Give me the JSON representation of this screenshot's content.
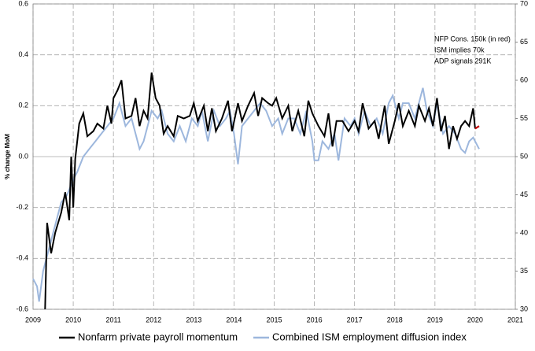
{
  "chart_data": {
    "type": "line",
    "y_label": "% change MoM",
    "annotations": [
      "NFP Cons. 150k (in red)",
      "ISM implies   70k",
      "ADP signals  291K"
    ],
    "xlim": [
      2009,
      2021
    ],
    "xticks": [
      2009,
      2010,
      2011,
      2012,
      2013,
      2014,
      2015,
      2016,
      2017,
      2018,
      2019,
      2020,
      2021
    ],
    "ylim": [
      -0.6,
      0.6
    ],
    "yticks": [
      -0.6,
      -0.4,
      -0.2,
      {
        "value": 0,
        "label": "0.0"
      },
      0.2,
      0.4,
      0.6
    ],
    "y2lim": [
      30,
      70
    ],
    "y2ticks": [
      30,
      35,
      40,
      45,
      50,
      55,
      60,
      65,
      70
    ],
    "grid": true,
    "series": [
      {
        "name": "Nonfarm private payroll momentum",
        "color": "#000000",
        "x": [
          2009.3,
          2009.35,
          2009.45,
          2009.55,
          2009.7,
          2009.8,
          2009.9,
          2009.95,
          2010.0,
          2010.05,
          2010.15,
          2010.25,
          2010.35,
          2010.5,
          2010.6,
          2010.75,
          2010.85,
          2010.95,
          2011.0,
          2011.1,
          2011.2,
          2011.3,
          2011.45,
          2011.55,
          2011.65,
          2011.75,
          2011.85,
          2011.95,
          2012.05,
          2012.15,
          2012.25,
          2012.35,
          2012.5,
          2012.6,
          2012.75,
          2012.9,
          2013.0,
          2013.1,
          2013.25,
          2013.35,
          2013.45,
          2013.55,
          2013.7,
          2013.85,
          2013.95,
          2014.1,
          2014.2,
          2014.35,
          2014.5,
          2014.6,
          2014.7,
          2014.85,
          2014.95,
          2015.05,
          2015.2,
          2015.35,
          2015.45,
          2015.6,
          2015.75,
          2015.85,
          2015.95,
          2016.1,
          2016.25,
          2016.35,
          2016.45,
          2016.55,
          2016.7,
          2016.85,
          2017.0,
          2017.1,
          2017.2,
          2017.35,
          2017.5,
          2017.6,
          2017.75,
          2017.85,
          2018.0,
          2018.1,
          2018.2,
          2018.35,
          2018.5,
          2018.6,
          2018.75,
          2018.85,
          2018.95,
          2019.05,
          2019.15,
          2019.25,
          2019.35,
          2019.45,
          2019.55,
          2019.65,
          2019.75,
          2019.85,
          2019.95,
          2020.0
        ],
        "values": [
          -0.6,
          -0.26,
          -0.38,
          -0.3,
          -0.22,
          -0.14,
          -0.25,
          0.0,
          -0.2,
          -0.01,
          0.13,
          0.17,
          0.08,
          0.1,
          0.13,
          0.11,
          0.2,
          0.13,
          0.23,
          0.26,
          0.3,
          0.15,
          0.16,
          0.23,
          0.12,
          0.18,
          0.15,
          0.33,
          0.23,
          0.2,
          0.09,
          0.12,
          0.08,
          0.16,
          0.15,
          0.16,
          0.21,
          0.14,
          0.2,
          0.1,
          0.19,
          0.1,
          0.15,
          0.22,
          0.1,
          0.21,
          0.14,
          0.2,
          0.25,
          0.16,
          0.23,
          0.21,
          0.2,
          0.23,
          0.15,
          0.2,
          0.1,
          0.18,
          0.08,
          0.22,
          0.17,
          0.12,
          0.08,
          0.17,
          0.04,
          0.14,
          0.14,
          0.1,
          0.14,
          0.1,
          0.21,
          0.11,
          0.14,
          0.07,
          0.2,
          0.05,
          0.14,
          0.21,
          0.12,
          0.18,
          0.12,
          0.2,
          0.14,
          0.19,
          0.12,
          0.23,
          0.1,
          0.16,
          0.03,
          0.12,
          0.07,
          0.12,
          0.14,
          0.12,
          0.19,
          0.11
        ]
      },
      {
        "name": "Combined ISM employment diffusion index",
        "color": "#9db7dd",
        "axis": "y2",
        "x": [
          2009.0,
          2009.1,
          2009.15,
          2009.25,
          2009.4,
          2009.55,
          2009.7,
          2009.85,
          2010.0,
          2010.1,
          2010.25,
          2010.4,
          2010.55,
          2010.7,
          2010.85,
          2011.0,
          2011.15,
          2011.3,
          2011.45,
          2011.55,
          2011.65,
          2011.75,
          2011.85,
          2011.95,
          2012.1,
          2012.2,
          2012.35,
          2012.5,
          2012.65,
          2012.8,
          2012.95,
          2013.1,
          2013.2,
          2013.35,
          2013.5,
          2013.65,
          2013.8,
          2013.9,
          2014.0,
          2014.1,
          2014.2,
          2014.35,
          2014.5,
          2014.65,
          2014.8,
          2014.95,
          2015.1,
          2015.2,
          2015.35,
          2015.5,
          2015.65,
          2015.8,
          2015.95,
          2016.0,
          2016.1,
          2016.2,
          2016.35,
          2016.5,
          2016.6,
          2016.75,
          2016.9,
          2017.0,
          2017.1,
          2017.25,
          2017.4,
          2017.55,
          2017.7,
          2017.85,
          2017.95,
          2018.1,
          2018.2,
          2018.35,
          2018.5,
          2018.6,
          2018.7,
          2018.8,
          2018.95,
          2019.05,
          2019.2,
          2019.35,
          2019.5,
          2019.65,
          2019.75,
          2019.85,
          2019.95,
          2020.1
        ],
        "values": [
          34,
          33,
          31,
          35,
          38,
          41,
          44,
          45,
          47,
          48,
          50,
          51,
          52,
          53,
          54,
          55,
          57,
          54,
          55,
          53,
          51,
          52,
          54,
          56,
          55,
          56,
          53,
          52,
          54,
          52,
          55,
          54,
          56,
          52,
          56,
          54,
          55,
          56,
          53,
          49,
          54,
          55,
          56,
          57,
          56,
          54,
          55,
          53,
          55,
          55,
          53,
          56,
          52,
          49.5,
          49.5,
          52,
          51,
          53,
          49.5,
          55,
          54,
          55,
          53,
          56,
          54,
          55,
          53,
          57,
          58,
          55,
          57,
          57,
          55,
          57,
          59,
          56,
          54,
          57,
          53,
          54,
          53,
          51,
          50.5,
          52,
          52.5,
          51
        ]
      }
    ],
    "forecast": {
      "color": "#c00000",
      "x": [
        2020.0,
        2020.1
      ],
      "values": [
        0.11,
        0.12
      ]
    }
  }
}
